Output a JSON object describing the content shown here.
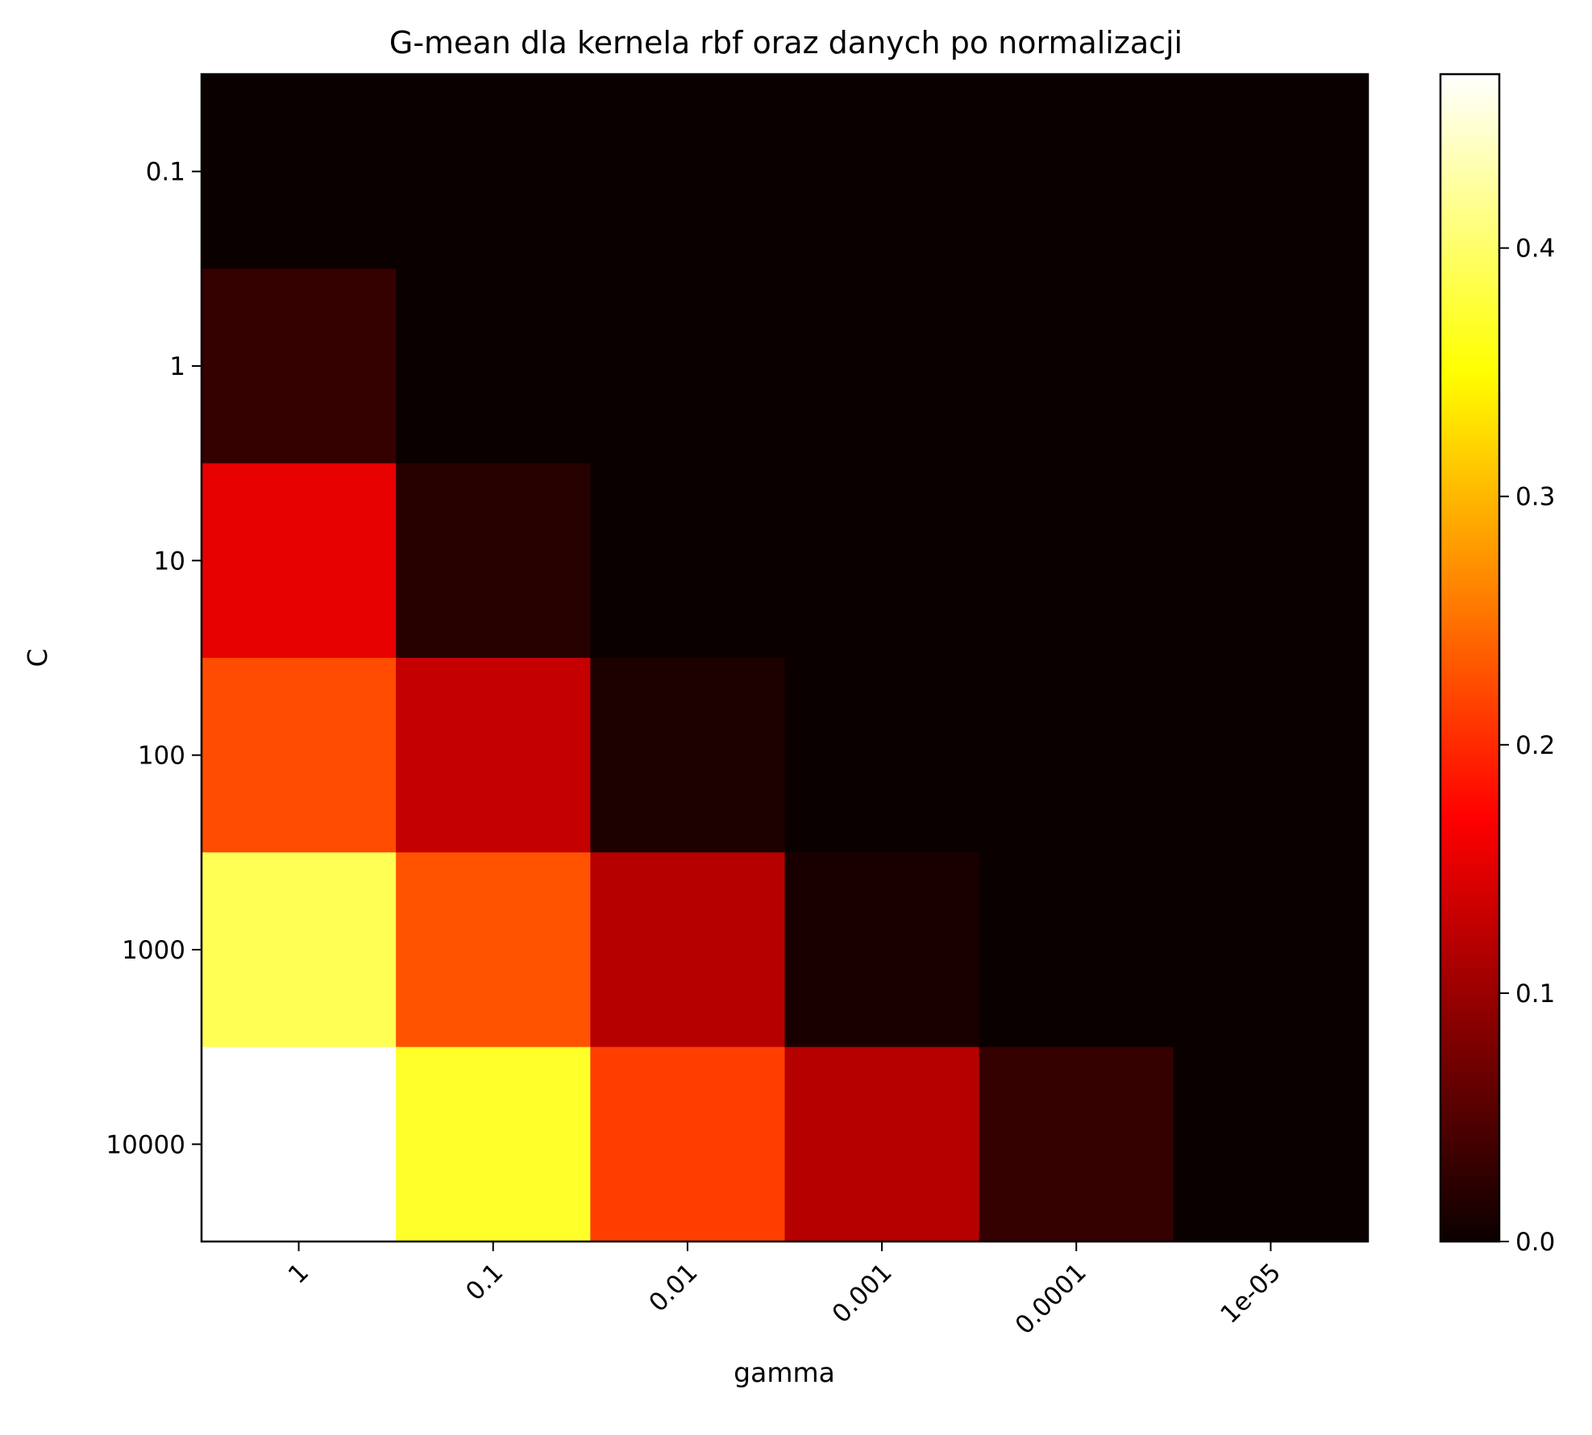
{
  "chart_data": {
    "type": "heatmap",
    "title": "G-mean dla kernela rbf oraz danych po normalizacji",
    "xlabel": "gamma",
    "ylabel": "C",
    "x_categories": [
      "1",
      "0.1",
      "0.01",
      "0.001",
      "0.0001",
      "1e-05"
    ],
    "y_categories": [
      "0.1",
      "1",
      "10",
      "100",
      "1000",
      "10000"
    ],
    "values": [
      [
        0.0,
        0.0,
        0.0,
        0.0,
        0.0,
        0.0
      ],
      [
        0.03,
        0.0,
        0.0,
        0.0,
        0.0,
        0.0
      ],
      [
        0.155,
        0.02,
        0.0,
        0.0,
        0.0,
        0.0
      ],
      [
        0.225,
        0.13,
        0.013,
        0.0,
        0.0,
        0.0
      ],
      [
        0.39,
        0.23,
        0.12,
        0.01,
        0.0,
        0.0
      ],
      [
        0.47,
        0.37,
        0.215,
        0.12,
        0.03,
        0.0
      ]
    ],
    "colormap": "hot",
    "colorbar": {
      "vmin": 0.0,
      "vmax": 0.47,
      "ticks": [
        0.0,
        0.1,
        0.2,
        0.3,
        0.4
      ],
      "tick_labels": [
        "0.0",
        "0.1",
        "0.2",
        "0.3",
        "0.4"
      ]
    },
    "grid": false,
    "legend": "none"
  }
}
